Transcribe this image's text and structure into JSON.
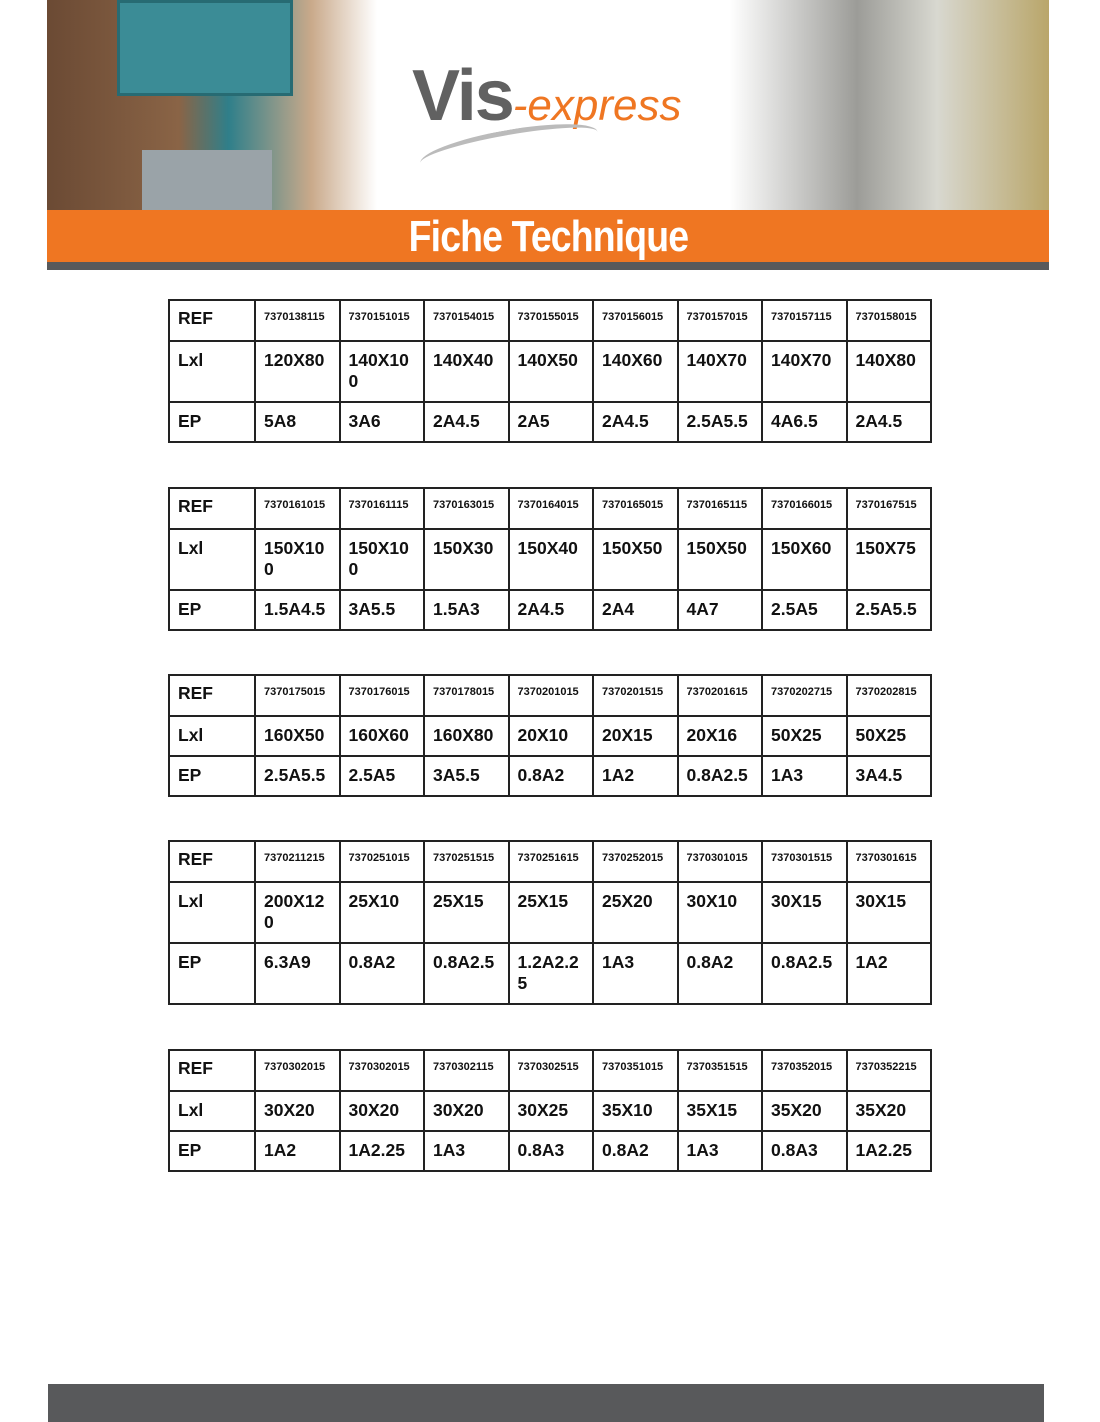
{
  "header": {
    "logo_main": "Vis",
    "logo_sub": "-express",
    "banner": "Fiche Technique"
  },
  "row_labels": {
    "ref": "REF",
    "lxl": "Lxl",
    "ep": "EP"
  },
  "tables": [
    {
      "ref": [
        "7370138115",
        "7370151015",
        "7370154015",
        "7370155015",
        "7370156015",
        "7370157015",
        "7370157115",
        "7370158015"
      ],
      "lxl": [
        "120X80",
        "140X100",
        "140X40",
        "140X50",
        "140X60",
        "140X70",
        "140X70",
        "140X80"
      ],
      "ep": [
        "5A8",
        "3A6",
        "2A4.5",
        "2A5",
        "2A4.5",
        "2.5A5.5",
        "4A6.5",
        "2A4.5"
      ]
    },
    {
      "ref": [
        "7370161015",
        "7370161115",
        "7370163015",
        "7370164015",
        "7370165015",
        "7370165115",
        "7370166015",
        "7370167515"
      ],
      "lxl": [
        "150X100",
        "150X100",
        "150X30",
        "150X40",
        "150X50",
        "150X50",
        "150X60",
        "150X75"
      ],
      "ep": [
        "1.5A4.5",
        "3A5.5",
        "1.5A3",
        "2A4.5",
        "2A4",
        "4A7",
        "2.5A5",
        "2.5A5.5"
      ]
    },
    {
      "ref": [
        "7370175015",
        "7370176015",
        "7370178015",
        "7370201015",
        "7370201515",
        "7370201615",
        "7370202715",
        "7370202815"
      ],
      "lxl": [
        "160X50",
        "160X60",
        "160X80",
        "20X10",
        "20X15",
        "20X16",
        "50X25",
        "50X25"
      ],
      "ep": [
        "2.5A5.5",
        "2.5A5",
        "3A5.5",
        "0.8A2",
        "1A2",
        "0.8A2.5",
        "1A3",
        "3A4.5"
      ]
    },
    {
      "ref": [
        "7370211215",
        "7370251015",
        "7370251515",
        "7370251615",
        "7370252015",
        "7370301015",
        "7370301515",
        "7370301615"
      ],
      "lxl": [
        "200X120",
        "25X10",
        "25X15",
        "25X15",
        "25X20",
        "30X10",
        "30X15",
        "30X15"
      ],
      "ep": [
        "6.3A9",
        "0.8A2",
        "0.8A2.5",
        "1.2A2.25",
        "1A3",
        "0.8A2",
        "0.8A2.5",
        "1A2"
      ]
    },
    {
      "ref": [
        "7370302015",
        "7370302015",
        "7370302115",
        "7370302515",
        "7370351015",
        "7370351515",
        "7370352015",
        "7370352215"
      ],
      "lxl": [
        "30X20",
        "30X20",
        "30X20",
        "30X25",
        "35X10",
        "35X15",
        "35X20",
        "35X20"
      ],
      "ep": [
        "1A2",
        "1A2.25",
        "1A3",
        "0.8A3",
        "0.8A2",
        "1A3",
        "0.8A3",
        "1A2.25"
      ]
    }
  ]
}
